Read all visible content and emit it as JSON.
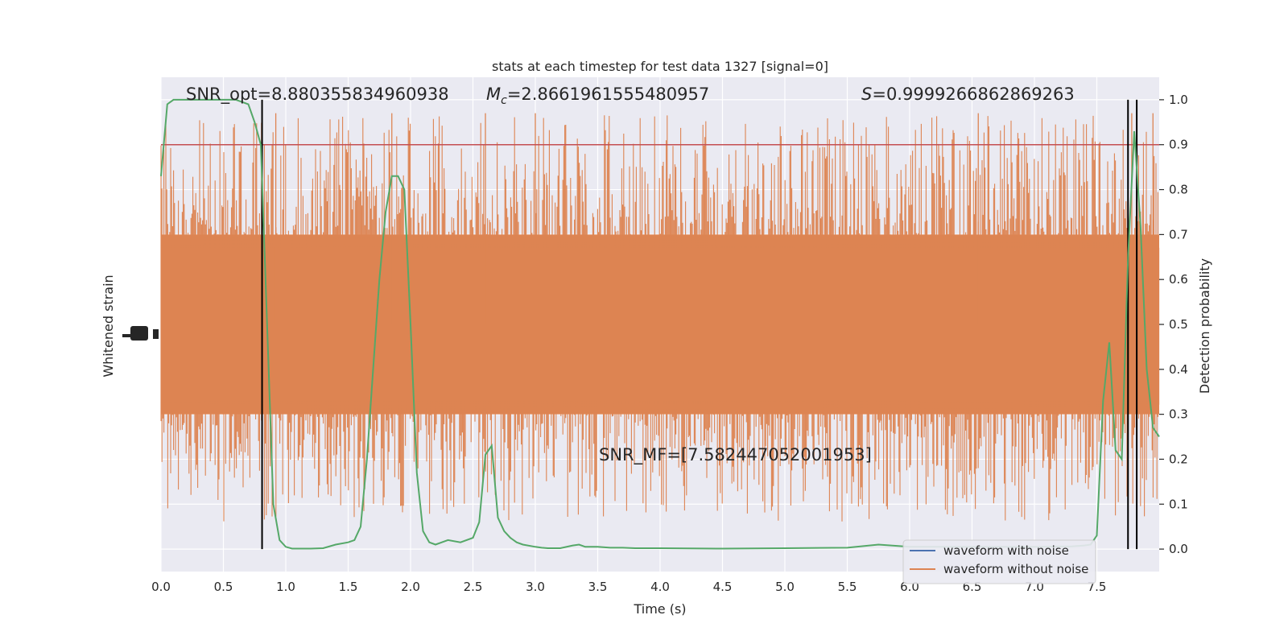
{
  "chart_data": {
    "type": "line",
    "title": "stats at each timestep for test data 1327 [signal=0]",
    "xlabel": "Time (s)",
    "ylabel_left": "Whitened strain",
    "ylabel_right": "Detection probability",
    "xlim": [
      0.0,
      8.0
    ],
    "ylim_right": [
      -0.05,
      1.05
    ],
    "x_ticks": [
      "0.0",
      "0.5",
      "1.0",
      "1.5",
      "2.0",
      "2.5",
      "3.0",
      "3.5",
      "4.0",
      "4.5",
      "5.0",
      "5.5",
      "6.0",
      "6.5",
      "7.0",
      "7.5"
    ],
    "x_tick_values": [
      0.0,
      0.5,
      1.0,
      1.5,
      2.0,
      2.5,
      3.0,
      3.5,
      4.0,
      4.5,
      5.0,
      5.5,
      6.0,
      6.5,
      7.0,
      7.5
    ],
    "y_ticks_right": [
      "0.0",
      "0.1",
      "0.2",
      "0.3",
      "0.4",
      "0.5",
      "0.6",
      "0.7",
      "0.8",
      "0.9",
      "1.0"
    ],
    "y_tick_values_right": [
      0.0,
      0.1,
      0.2,
      0.3,
      0.4,
      0.5,
      0.6,
      0.7,
      0.8,
      0.9,
      1.0
    ],
    "grid": true,
    "legend_position": "bottom-right",
    "annotations": {
      "snr_opt": "SNR_opt=8.880355834960938",
      "mc_symbol": "M",
      "mc_sub": "c",
      "mc_value": "=2.8661961555480957",
      "s_symbol": "S",
      "s_value": "=0.9999266862869263",
      "snr_mf": "SNR_MF=[7.582447052001953]"
    },
    "threshold": 0.9,
    "vertical_lines_x": [
      0.81,
      7.75,
      7.82
    ],
    "series": [
      {
        "name": "waveform with noise",
        "color": "#4c72b0",
        "values": []
      },
      {
        "name": "waveform without noise",
        "color": "#dd8452",
        "values": []
      },
      {
        "color": "#55a868",
        "x": [
          0.0,
          0.05,
          0.1,
          0.2,
          0.3,
          0.4,
          0.5,
          0.6,
          0.7,
          0.75,
          0.8,
          0.85,
          0.9,
          0.95,
          1.0,
          1.05,
          1.1,
          1.2,
          1.3,
          1.4,
          1.5,
          1.55,
          1.6,
          1.65,
          1.7,
          1.75,
          1.8,
          1.85,
          1.9,
          1.95,
          2.0,
          2.05,
          2.1,
          2.15,
          2.2,
          2.25,
          2.3,
          2.4,
          2.5,
          2.55,
          2.6,
          2.65,
          2.7,
          2.75,
          2.8,
          2.85,
          2.9,
          3.0,
          3.05,
          3.1,
          3.2,
          3.3,
          3.35,
          3.4,
          3.5,
          3.6,
          3.7,
          3.8,
          4.0,
          4.5,
          5.0,
          5.5,
          5.75,
          6.0,
          6.5,
          7.0,
          7.3,
          7.4,
          7.45,
          7.5,
          7.55,
          7.6,
          7.65,
          7.7,
          7.75,
          7.8,
          7.85,
          7.9,
          7.95,
          8.0
        ],
        "values": [
          0.83,
          0.99,
          1.0,
          1.0,
          1.0,
          1.0,
          1.0,
          1.0,
          0.99,
          0.95,
          0.9,
          0.5,
          0.1,
          0.02,
          0.005,
          0.001,
          0.001,
          0.001,
          0.002,
          0.01,
          0.015,
          0.02,
          0.05,
          0.2,
          0.4,
          0.6,
          0.75,
          0.83,
          0.83,
          0.8,
          0.5,
          0.17,
          0.04,
          0.015,
          0.01,
          0.015,
          0.02,
          0.015,
          0.025,
          0.06,
          0.21,
          0.23,
          0.07,
          0.04,
          0.025,
          0.015,
          0.01,
          0.005,
          0.003,
          0.002,
          0.002,
          0.008,
          0.01,
          0.005,
          0.005,
          0.003,
          0.003,
          0.002,
          0.002,
          0.001,
          0.002,
          0.003,
          0.01,
          0.005,
          0.005,
          0.005,
          0.006,
          0.008,
          0.01,
          0.03,
          0.33,
          0.46,
          0.22,
          0.2,
          0.65,
          0.93,
          0.72,
          0.4,
          0.27,
          0.25
        ]
      }
    ]
  }
}
